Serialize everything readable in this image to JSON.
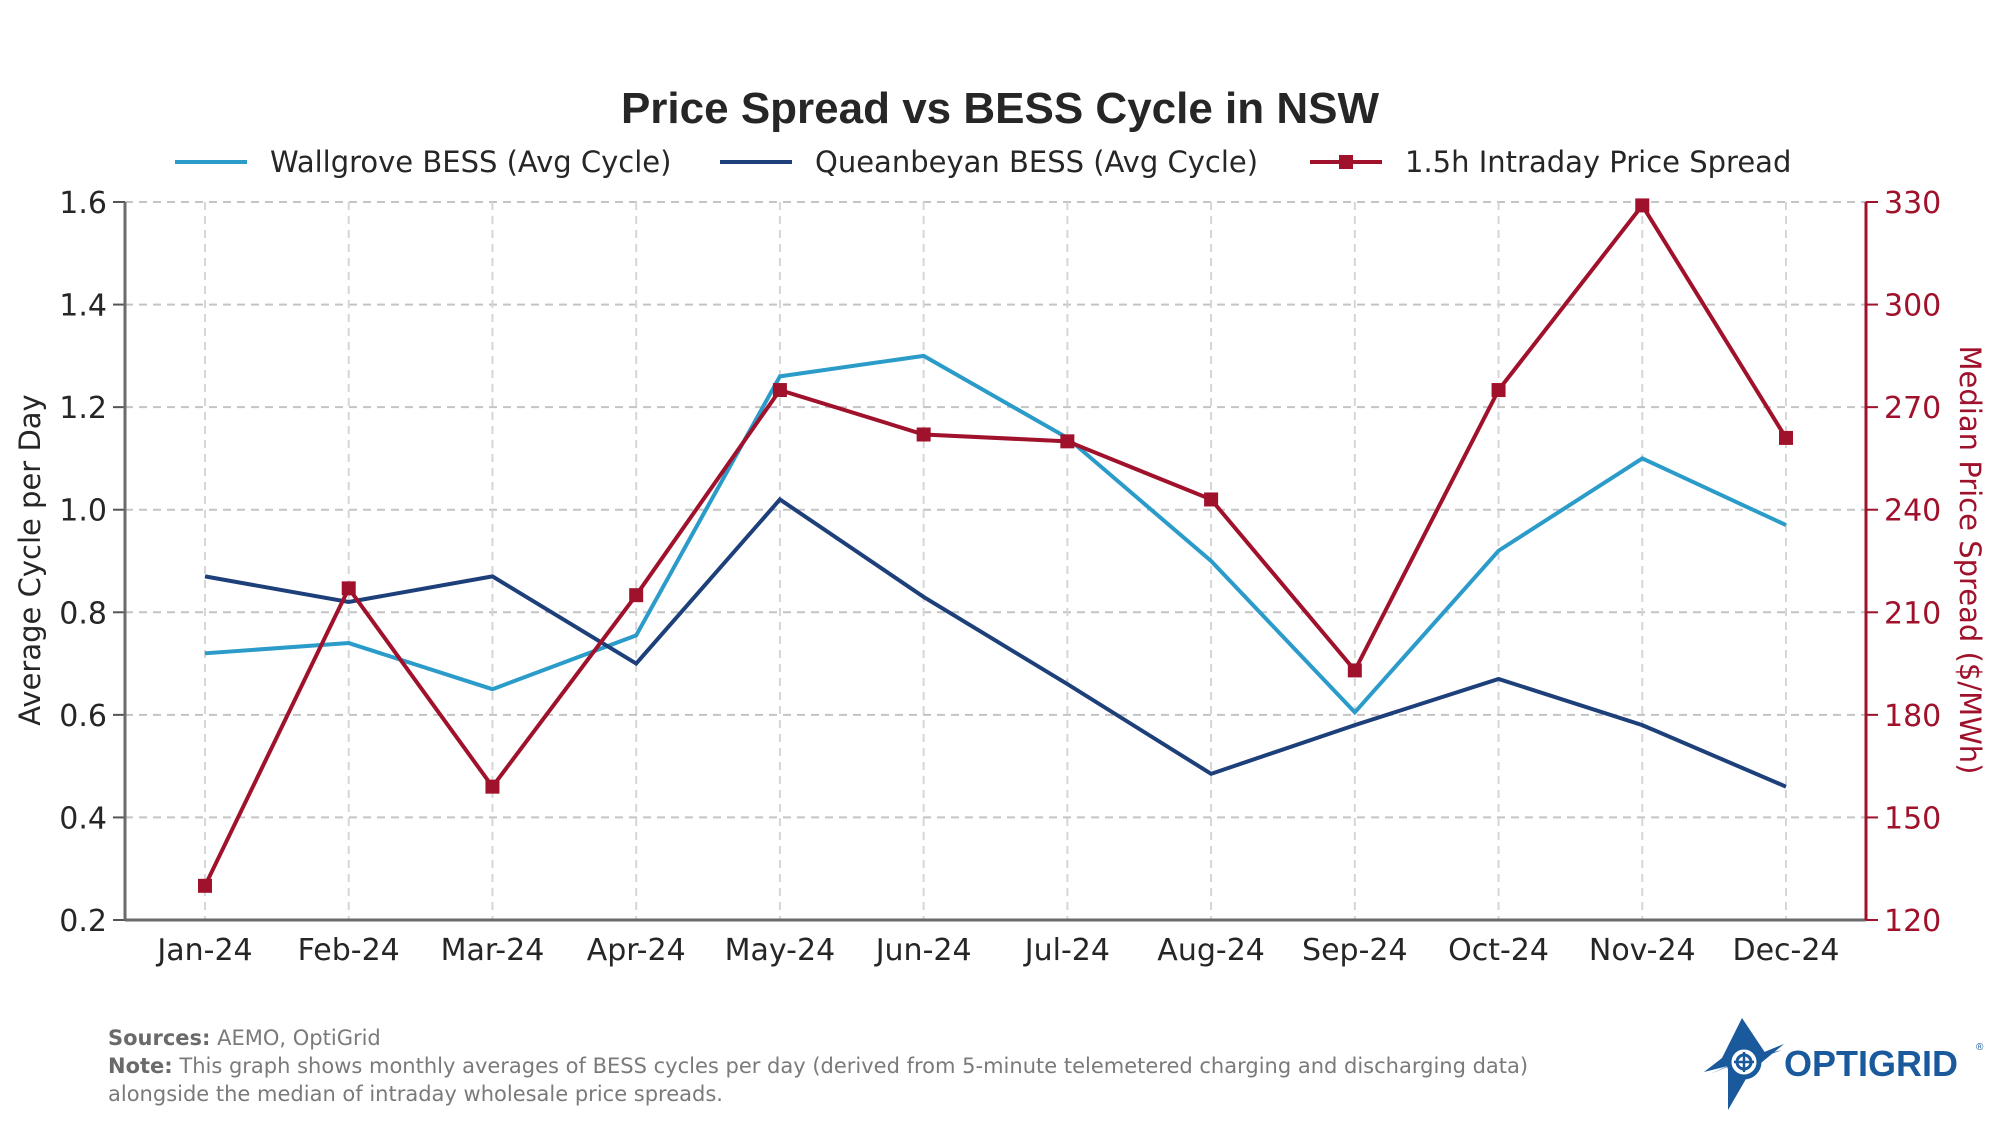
{
  "chart_data": {
    "type": "line",
    "title": "Price Spread vs BESS Cycle in NSW",
    "categories": [
      "Jan-24",
      "Feb-24",
      "Mar-24",
      "Apr-24",
      "May-24",
      "Jun-24",
      "Jul-24",
      "Aug-24",
      "Sep-24",
      "Oct-24",
      "Nov-24",
      "Dec-24"
    ],
    "xlabel": "",
    "ylabel": "Average Cycle per Day",
    "ylabel_right": "Median Price Spread ($/MWh)",
    "ylim": [
      0.2,
      1.6
    ],
    "ylim_right": [
      120,
      330
    ],
    "yticks": [
      "0.2",
      "0.4",
      "0.6",
      "0.8",
      "1.0",
      "1.2",
      "1.4",
      "1.6"
    ],
    "yticks_right": [
      "120",
      "150",
      "180",
      "210",
      "240",
      "270",
      "300",
      "330"
    ],
    "grid": true,
    "legend_position": "top-center",
    "series": [
      {
        "name": "Wallgrove BESS (Avg Cycle)",
        "axis": "left",
        "color": "#2b9cc9",
        "marker": "none",
        "values": [
          0.72,
          0.74,
          0.65,
          0.755,
          1.26,
          1.3,
          1.14,
          0.9,
          0.605,
          0.92,
          1.1,
          0.97
        ]
      },
      {
        "name": "Queanbeyan BESS (Avg Cycle)",
        "axis": "left",
        "color": "#1d3f7a",
        "marker": "none",
        "values": [
          0.87,
          0.82,
          0.87,
          0.7,
          1.02,
          0.83,
          0.66,
          0.485,
          0.58,
          0.67,
          0.58,
          0.46
        ]
      },
      {
        "name": "1.5h Intraday Price Spread",
        "axis": "right",
        "color": "#a0112b",
        "marker": "square",
        "values": [
          130,
          217,
          159,
          215,
          275,
          262,
          260,
          243,
          193,
          275,
          329,
          261
        ]
      }
    ]
  },
  "footer": {
    "sources_label": "Sources:",
    "sources_text": " AEMO, OptiGrid",
    "note_label": "Note:",
    "note_text": " This graph shows monthly averages of BESS cycles per day (derived from 5-minute telemetered charging and discharging data) alongside the median of intraday wholesale price spreads."
  },
  "logo": {
    "text": "OPTIGRID",
    "registered": "®",
    "color": "#1a5a9c"
  }
}
